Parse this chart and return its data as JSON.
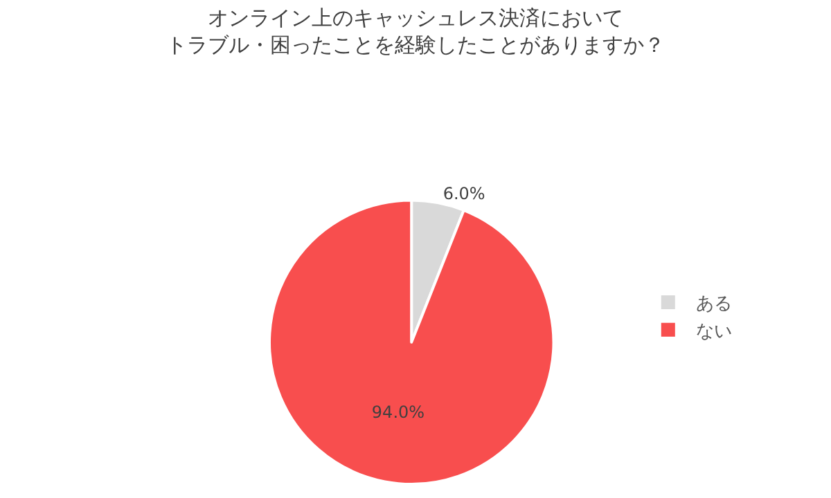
{
  "chart_data": {
    "type": "pie",
    "title": "オンライン上のキャッシュレス決済において",
    "subtitle": "トラブル・困ったことを経験したことがありますか？",
    "categories": [
      "ある",
      "ない"
    ],
    "values": [
      6.0,
      94.0
    ],
    "value_labels": [
      "6.0%",
      "94.0%"
    ],
    "colors": [
      "#d9d9d9",
      "#f84e4e"
    ],
    "legend": "right"
  }
}
